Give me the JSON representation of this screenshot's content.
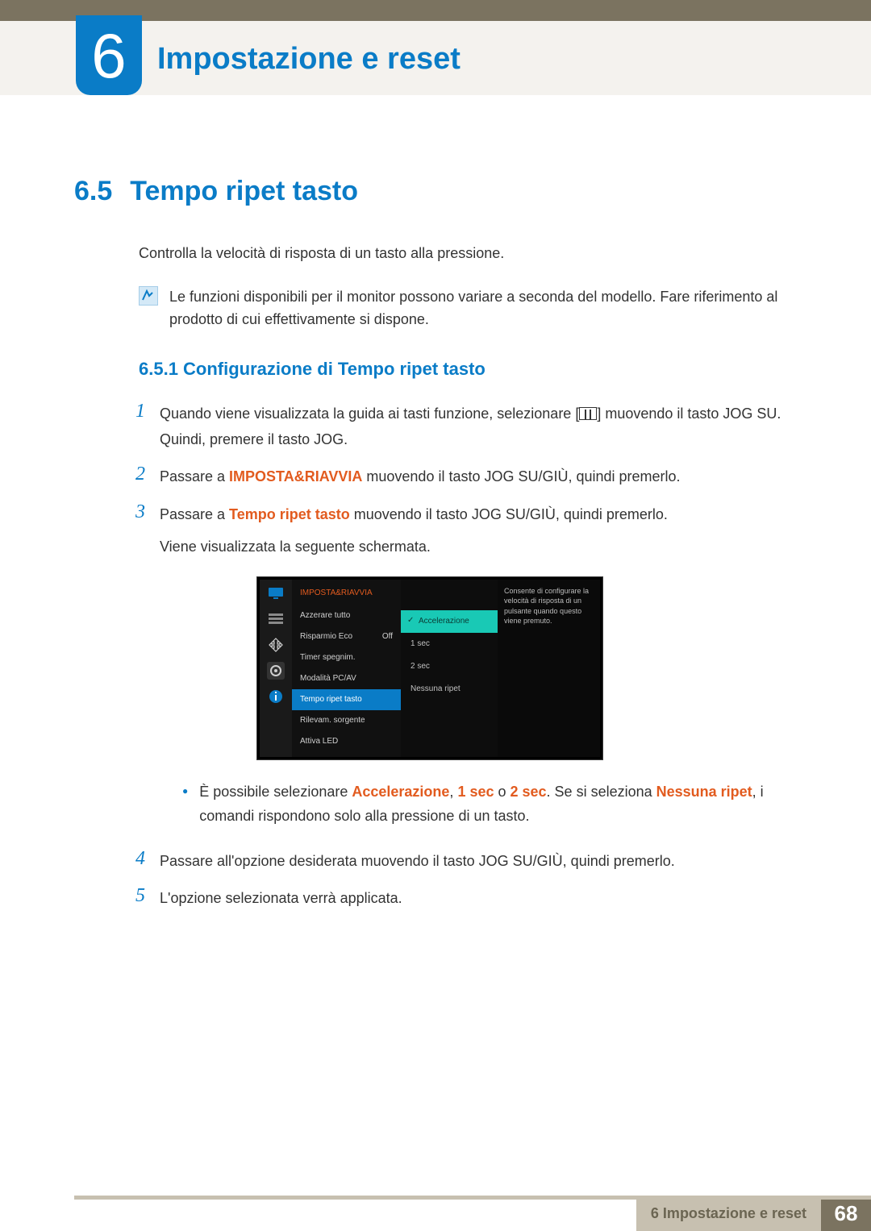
{
  "chapter": {
    "number": "6",
    "title": "Impostazione e reset"
  },
  "section": {
    "number": "6.5",
    "title": "Tempo ripet tasto"
  },
  "intro": "Controlla la velocità di risposta di un tasto alla pressione.",
  "note": "Le funzioni disponibili per il monitor possono variare a seconda del modello. Fare riferimento al prodotto di cui effettivamente si dispone.",
  "subsection": "6.5.1   Configurazione di Tempo ripet tasto",
  "steps": {
    "s1a": "Quando viene visualizzata la guida ai tasti funzione, selezionare [",
    "s1b": "] muovendo il tasto JOG SU. Quindi, premere il tasto JOG.",
    "s2a": "Passare a ",
    "s2kw": "IMPOSTA&RIAVVIA",
    "s2b": " muovendo il tasto JOG SU/GIÙ, quindi premerlo.",
    "s3a": "Passare a ",
    "s3kw": "Tempo ripet tasto",
    "s3b": " muovendo il tasto JOG SU/GIÙ, quindi premerlo.",
    "s3c": "Viene visualizzata la seguente schermata.",
    "s4": "Passare all'opzione desiderata muovendo il tasto JOG SU/GIÙ, quindi premerlo.",
    "s5": "L'opzione selezionata verrà applicata."
  },
  "bullet": {
    "a": "È possibile selezionare ",
    "kw1": "Accelerazione",
    "sep1": ", ",
    "kw2": "1 sec",
    "sep2": " o ",
    "kw3": "2 sec",
    "mid": ". Se si seleziona ",
    "kw4": "Nessuna ripet",
    "rest": ", i comandi rispondono solo alla pressione di un tasto."
  },
  "osd": {
    "title": "IMPOSTA&RIAVVIA",
    "menu": [
      {
        "label": "Azzerare tutto",
        "value": ""
      },
      {
        "label": "Risparmio Eco",
        "value": "Off"
      },
      {
        "label": "Timer spegnim.",
        "value": ""
      },
      {
        "label": "Modalità PC/AV",
        "value": ""
      },
      {
        "label": "Tempo ripet tasto",
        "value": "",
        "selected": true
      },
      {
        "label": "Rilevam. sorgente",
        "value": ""
      },
      {
        "label": "Attiva LED",
        "value": ""
      }
    ],
    "options": [
      {
        "label": "Accelerazione",
        "selected": true
      },
      {
        "label": "1 sec"
      },
      {
        "label": "2 sec"
      },
      {
        "label": "Nessuna ripet"
      }
    ],
    "tip": "Consente di configurare la velocità di risposta di un pulsante quando questo viene premuto.",
    "icon_colors": [
      "#0a7cc7",
      "#8a8a8a",
      "#d0d0d0",
      "#cfcfcf",
      "#0a7cc7"
    ]
  },
  "footer": {
    "label": "6 Impostazione e reset",
    "page": "68"
  },
  "colors": {
    "accent": "#0a7cc7",
    "keyword": "#e25b1f",
    "topbar": "#7b7360",
    "band": "#f4f2ee",
    "footer_bar": "#c7c0b0",
    "teal": "#19c9b5"
  }
}
